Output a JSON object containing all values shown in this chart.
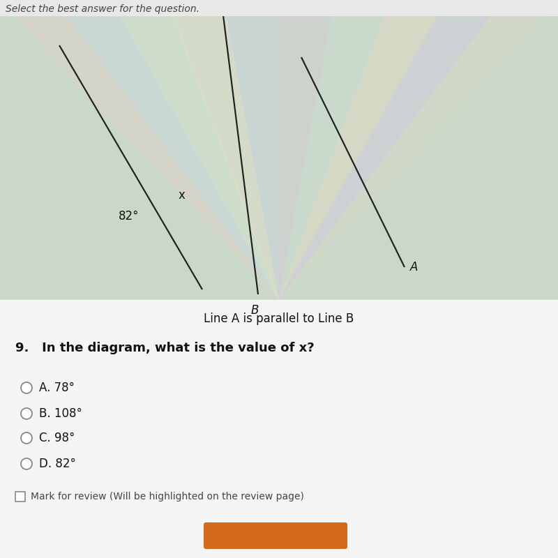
{
  "bg_top_color": "#c8dde8",
  "bg_bottom_color": "#cce0cc",
  "header_text": "Select the best answer for the question.",
  "diagram_caption": "Line A is parallel to Line B",
  "question": "9.   In the diagram, what is the value of x?",
  "options": [
    "A. 78°",
    "B. 108°",
    "C. 98°",
    "D. 82°"
  ],
  "review_text": "Mark for review (Will be highlighted on the review page)",
  "angle_label": "82°",
  "x_label": "x",
  "line_A_label": "A",
  "line_B_label": "B",
  "line_color": "#222222",
  "text_color": "#111111",
  "header_bg": "#e8e8e8",
  "bottom_bg": "#f0f0f0",
  "btn_color": "#d46a1a"
}
